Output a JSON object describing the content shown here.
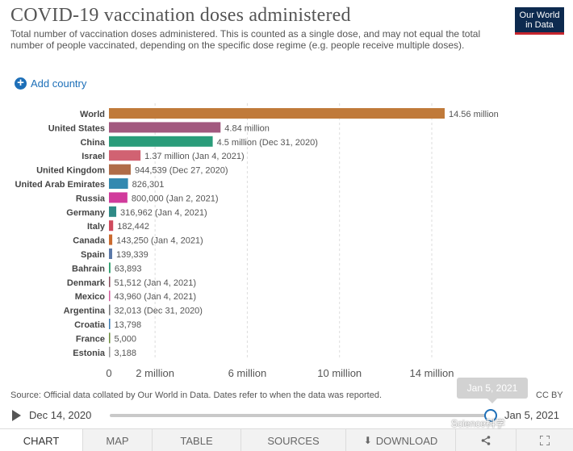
{
  "header": {
    "title": "COVID-19 vaccination doses administered",
    "subtitle": "Total number of vaccination doses administered. This is counted as a single dose, and may not equal the total number of people vaccinated, depending on the specific dose regime (e.g. people receive multiple doses).",
    "logo_line1": "Our World",
    "logo_line2": "in Data"
  },
  "controls": {
    "add_country": "Add country",
    "add_icon": "plus-icon"
  },
  "chart_data": {
    "type": "bar",
    "orientation": "horizontal",
    "title": "COVID-19 vaccination doses administered",
    "xlim": [
      0,
      15000000
    ],
    "x_ticks": [
      {
        "value": 0,
        "label": "0"
      },
      {
        "value": 2000000,
        "label": "2 million"
      },
      {
        "value": 6000000,
        "label": "6 million"
      },
      {
        "value": 10000000,
        "label": "10 million"
      },
      {
        "value": 14000000,
        "label": "14 million"
      }
    ],
    "grid": true,
    "bars": [
      {
        "name": "World",
        "value": 14560000,
        "label": "14.56 million",
        "color": "#c07a3a"
      },
      {
        "name": "United States",
        "value": 4840000,
        "label": "4.84 million",
        "color": "#a2597f"
      },
      {
        "name": "China",
        "value": 4500000,
        "label": "4.5 million (Dec 31, 2020)",
        "color": "#2a9c7a"
      },
      {
        "name": "Israel",
        "value": 1370000,
        "label": "1.37 million (Jan 4, 2021)",
        "color": "#d16272"
      },
      {
        "name": "United Kingdom",
        "value": 944539,
        "label": "944,539 (Dec 27, 2020)",
        "color": "#b06c48"
      },
      {
        "name": "United Arab Emirates",
        "value": 826301,
        "label": "826,301",
        "color": "#3389b0"
      },
      {
        "name": "Russia",
        "value": 800000,
        "label": "800,000 (Jan 2, 2021)",
        "color": "#d13b9c"
      },
      {
        "name": "Germany",
        "value": 316962,
        "label": "316,962 (Jan 4, 2021)",
        "color": "#2f8a86"
      },
      {
        "name": "Italy",
        "value": 182442,
        "label": "182,442",
        "color": "#cf4b5e"
      },
      {
        "name": "Canada",
        "value": 143250,
        "label": "143,250 (Jan 4, 2021)",
        "color": "#cb6a2e"
      },
      {
        "name": "Spain",
        "value": 139339,
        "label": "139,339",
        "color": "#5a78a8"
      },
      {
        "name": "Bahrain",
        "value": 63893,
        "label": "63,893",
        "color": "#2a9c6a"
      },
      {
        "name": "Denmark",
        "value": 51512,
        "label": "51,512 (Jan 4, 2021)",
        "color": "#8a4a5a"
      },
      {
        "name": "Mexico",
        "value": 43960,
        "label": "43,960 (Jan 4, 2021)",
        "color": "#d25a9a"
      },
      {
        "name": "Argentina",
        "value": 32013,
        "label": "32,013 (Dec 31, 2020)",
        "color": "#777777"
      },
      {
        "name": "Croatia",
        "value": 13798,
        "label": "13,798",
        "color": "#3a7ab0"
      },
      {
        "name": "France",
        "value": 5000,
        "label": "5,000",
        "color": "#6a8a3a"
      },
      {
        "name": "Estonia",
        "value": 3188,
        "label": "3,188",
        "color": "#999999"
      }
    ]
  },
  "footer": {
    "source": "Source: Official data collated by Our World in Data. Dates refer to when the data was reported.",
    "license": "CC BY"
  },
  "timeline": {
    "start": "Dec 14, 2020",
    "end": "Jan 5, 2021",
    "tooltip": "Jan 5, 2021",
    "position": 1.0
  },
  "tabs": {
    "chart": "CHART",
    "map": "MAP",
    "table": "TABLE",
    "sources": "SOURCES",
    "download": "DOWNLOAD",
    "download_icon": "download-icon",
    "share_icon": "share-icon",
    "expand_icon": "expand-icon"
  },
  "watermark": "Science科学"
}
